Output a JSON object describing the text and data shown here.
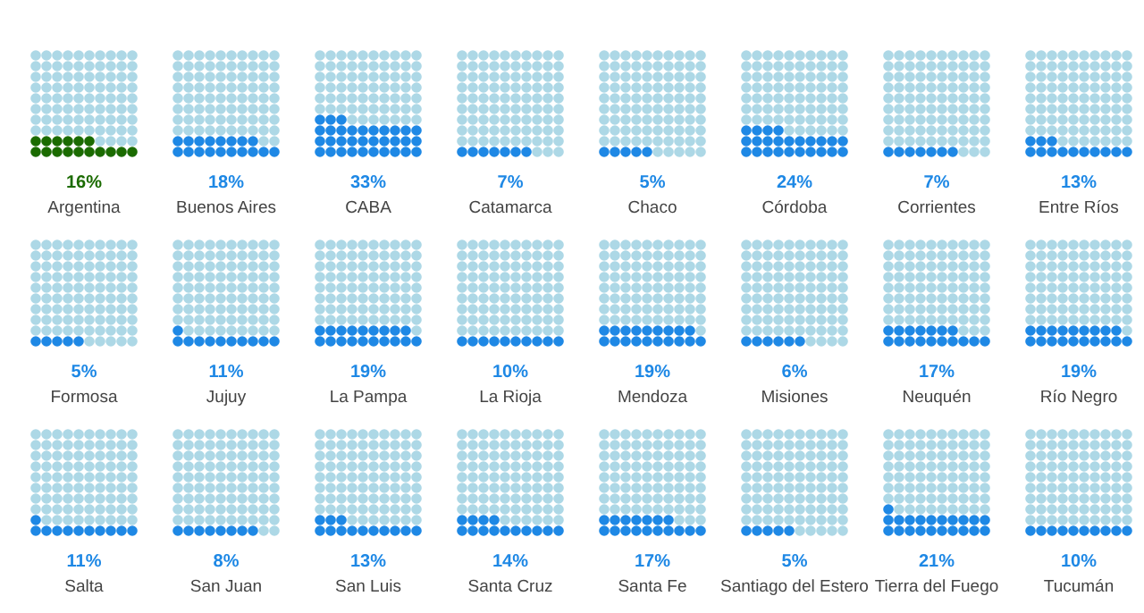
{
  "chart_data": {
    "type": "other",
    "categories": [
      "Argentina",
      "Buenos Aires",
      "CABA",
      "Catamarca",
      "Chaco",
      "Córdoba",
      "Corrientes",
      "Entre Ríos",
      "Formosa",
      "Jujuy",
      "La Pampa",
      "La Rioja",
      "Mendoza",
      "Misiones",
      "Neuquén",
      "Río Negro",
      "Salta",
      "San Juan",
      "San Luis",
      "Santa Cruz",
      "Santa Fe",
      "Santiago del Estero",
      "Tierra del Fuego",
      "Tucumán"
    ],
    "values": [
      16,
      18,
      33,
      7,
      5,
      24,
      7,
      13,
      5,
      11,
      19,
      10,
      19,
      6,
      17,
      19,
      11,
      8,
      13,
      14,
      17,
      5,
      21,
      10
    ],
    "colors": [
      "#1b6b00",
      "#1e88e5",
      "#1e88e5",
      "#1e88e5",
      "#1e88e5",
      "#1e88e5",
      "#1e88e5",
      "#1e88e5",
      "#1e88e5",
      "#1e88e5",
      "#1e88e5",
      "#1e88e5",
      "#1e88e5",
      "#1e88e5",
      "#1e88e5",
      "#1e88e5",
      "#1e88e5",
      "#1e88e5",
      "#1e88e5",
      "#1e88e5",
      "#1e88e5",
      "#1e88e5",
      "#1e88e5",
      "#1e88e5"
    ],
    "value_labels": [
      "16%",
      "18%",
      "33%",
      "7%",
      "5%",
      "24%",
      "7%",
      "13%",
      "5%",
      "11%",
      "19%",
      "10%",
      "19%",
      "6%",
      "17%",
      "19%",
      "11%",
      "8%",
      "13%",
      "14%",
      "17%",
      "5%",
      "21%",
      "10%"
    ]
  }
}
